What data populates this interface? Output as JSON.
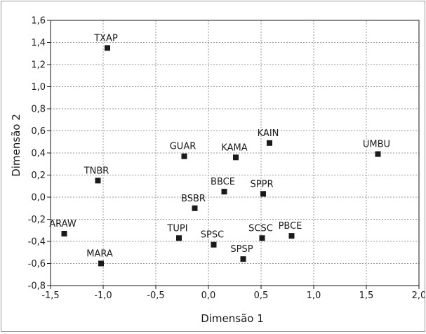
{
  "chart_data": {
    "type": "scatter",
    "title": "",
    "xlabel": "Dimensão 1",
    "ylabel": "Dimensão 2",
    "xlim": [
      -1.5,
      2.0
    ],
    "ylim": [
      -0.8,
      1.6
    ],
    "grid": true,
    "x_ticks": [
      -1.5,
      -1.0,
      -0.5,
      0.0,
      0.5,
      1.0,
      1.5,
      2.0
    ],
    "y_ticks": [
      -0.8,
      -0.6,
      -0.4,
      -0.2,
      0.0,
      0.2,
      0.4,
      0.6,
      0.8,
      1.0,
      1.2,
      1.4,
      1.6
    ],
    "x_tick_labels": [
      "-1,5",
      "-1,0",
      "-0,5",
      "0,0",
      "0,5",
      "1,0",
      "1,5",
      "2,0"
    ],
    "y_tick_labels": [
      "-0,8",
      "-0,6",
      "-0,4",
      "-0,2",
      "0,0",
      "0,2",
      "0,4",
      "0,6",
      "0,8",
      "1,0",
      "1,2",
      "1,4",
      "1,6"
    ],
    "marker_color": "#1a1a1a",
    "points": [
      {
        "label": "TXAP",
        "x": -0.96,
        "y": 1.35
      },
      {
        "label": "KAIN",
        "x": 0.58,
        "y": 0.49
      },
      {
        "label": "UMBU",
        "x": 1.61,
        "y": 0.39
      },
      {
        "label": "GUAR",
        "x": -0.23,
        "y": 0.37
      },
      {
        "label": "KAMA",
        "x": 0.26,
        "y": 0.36
      },
      {
        "label": "TNBR",
        "x": -1.05,
        "y": 0.15
      },
      {
        "label": "BBCE",
        "x": 0.15,
        "y": 0.05
      },
      {
        "label": "SPPR",
        "x": 0.52,
        "y": 0.03
      },
      {
        "label": "BSBR",
        "x": -0.13,
        "y": -0.1
      },
      {
        "label": "ARAW",
        "x": -1.37,
        "y": -0.33
      },
      {
        "label": "TUPI",
        "x": -0.28,
        "y": -0.37
      },
      {
        "label": "SCSC",
        "x": 0.51,
        "y": -0.37
      },
      {
        "label": "PBCE",
        "x": 0.79,
        "y": -0.35
      },
      {
        "label": "SPSC",
        "x": 0.05,
        "y": -0.43
      },
      {
        "label": "SPSP",
        "x": 0.33,
        "y": -0.56
      },
      {
        "label": "MARA",
        "x": -1.02,
        "y": -0.6
      }
    ]
  }
}
